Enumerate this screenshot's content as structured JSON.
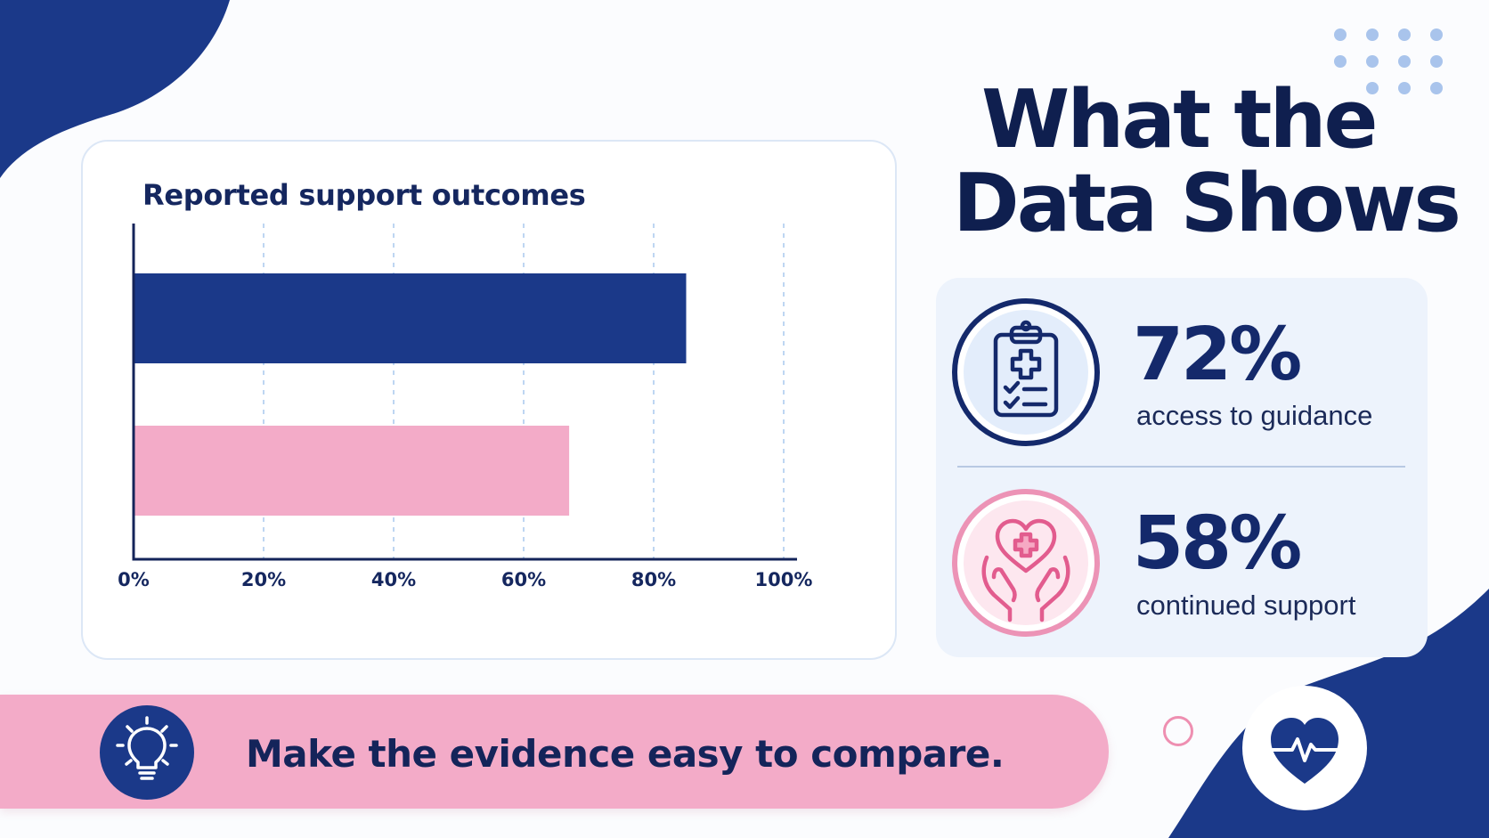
{
  "main_title": {
    "line1": "What the",
    "line2": "Data Shows"
  },
  "chart_data": {
    "type": "bar",
    "orientation": "horizontal",
    "title": "Reported support outcomes",
    "series": [
      {
        "values": [
          85,
          67
        ]
      }
    ],
    "bar_colors": [
      "#1b3989",
      "#f3abc8"
    ],
    "xlim": [
      0,
      100
    ],
    "x_ticks": [
      "0%",
      "20%",
      "40%",
      "60%",
      "80%",
      "100%"
    ],
    "grid": "vertical dashed"
  },
  "stats": [
    {
      "value": "72%",
      "label": "access to guidance",
      "icon": "clipboard-medical-icon",
      "color": "#14296b"
    },
    {
      "value": "58%",
      "label": "continued support",
      "icon": "hands-heart-icon",
      "color": "#ec93b6"
    }
  ],
  "banner": {
    "text": "Make the evidence easy to compare.",
    "icon": "lightbulb-icon"
  },
  "badge_icon": "heart-pulse-icon",
  "colors": {
    "navy": "#1b3989",
    "pink": "#f3abc8",
    "light_blue": "#edf3fc"
  }
}
